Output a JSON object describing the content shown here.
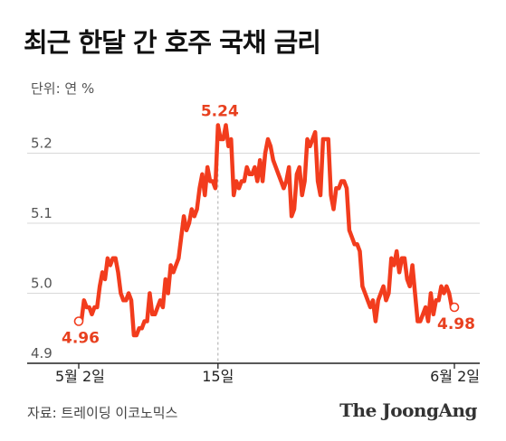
{
  "title": "최근 한달 간 호주 국채 금리",
  "unit_label": "단위: 연 %",
  "source": "자료: 트레이딩 이코노믹스",
  "brand": "The JoongAng",
  "colors": {
    "line": "#f23c1d",
    "label": "#e8401f",
    "grid": "#d8d8d8"
  },
  "chart_data": {
    "type": "line",
    "title": "최근 한달 간 호주 국채 금리",
    "ylabel": "단위: 연 %",
    "xlabel": "",
    "ylim": [
      4.9,
      5.3
    ],
    "yticks": [
      4.9,
      5.0,
      5.1,
      5.2
    ],
    "xticks": [
      {
        "i": 0,
        "label": "5월 2일"
      },
      {
        "i": 53,
        "label": "15일"
      },
      {
        "i": 143,
        "label": "6월 2일"
      }
    ],
    "grid": "horizontal",
    "annotations": [
      {
        "i": 0,
        "label": "4.96"
      },
      {
        "i": 53,
        "label": "5.24"
      },
      {
        "i": 143,
        "label": "4.98"
      }
    ],
    "series": [
      {
        "name": "",
        "values": [
          4.96,
          4.96,
          4.99,
          4.98,
          4.98,
          4.97,
          4.98,
          4.98,
          5.01,
          5.03,
          5.02,
          5.05,
          5.04,
          5.05,
          5.05,
          5.03,
          5.0,
          4.99,
          4.99,
          5.0,
          4.99,
          4.94,
          4.94,
          4.95,
          4.95,
          4.96,
          4.96,
          5.0,
          4.97,
          4.97,
          4.98,
          4.99,
          4.98,
          5.02,
          5.0,
          5.04,
          5.03,
          5.04,
          5.05,
          5.08,
          5.11,
          5.09,
          5.1,
          5.12,
          5.11,
          5.12,
          5.15,
          5.17,
          5.14,
          5.18,
          5.16,
          5.16,
          5.15,
          5.24,
          5.22,
          5.22,
          5.24,
          5.21,
          5.22,
          5.14,
          5.16,
          5.15,
          5.16,
          5.16,
          5.18,
          5.17,
          5.17,
          5.18,
          5.16,
          5.19,
          5.16,
          5.2,
          5.22,
          5.21,
          5.19,
          5.18,
          5.17,
          5.16,
          5.15,
          5.16,
          5.18,
          5.11,
          5.12,
          5.17,
          5.18,
          5.14,
          5.16,
          5.22,
          5.21,
          5.22,
          5.23,
          5.16,
          5.14,
          5.22,
          5.22,
          5.22,
          5.14,
          5.12,
          5.15,
          5.15,
          5.16,
          5.16,
          5.15,
          5.09,
          5.08,
          5.07,
          5.07,
          5.06,
          5.01,
          5.0,
          4.99,
          4.98,
          4.99,
          4.96,
          4.99,
          5.0,
          5.01,
          4.99,
          5.0,
          5.05,
          5.04,
          5.06,
          5.03,
          5.05,
          5.05,
          5.02,
          5.01,
          5.04,
          5.0,
          4.96,
          4.96,
          4.97,
          4.98,
          4.96,
          5.0,
          4.97,
          4.99,
          4.99,
          5.01,
          5.0,
          5.01,
          5.0,
          4.98,
          4.98
        ]
      }
    ]
  }
}
